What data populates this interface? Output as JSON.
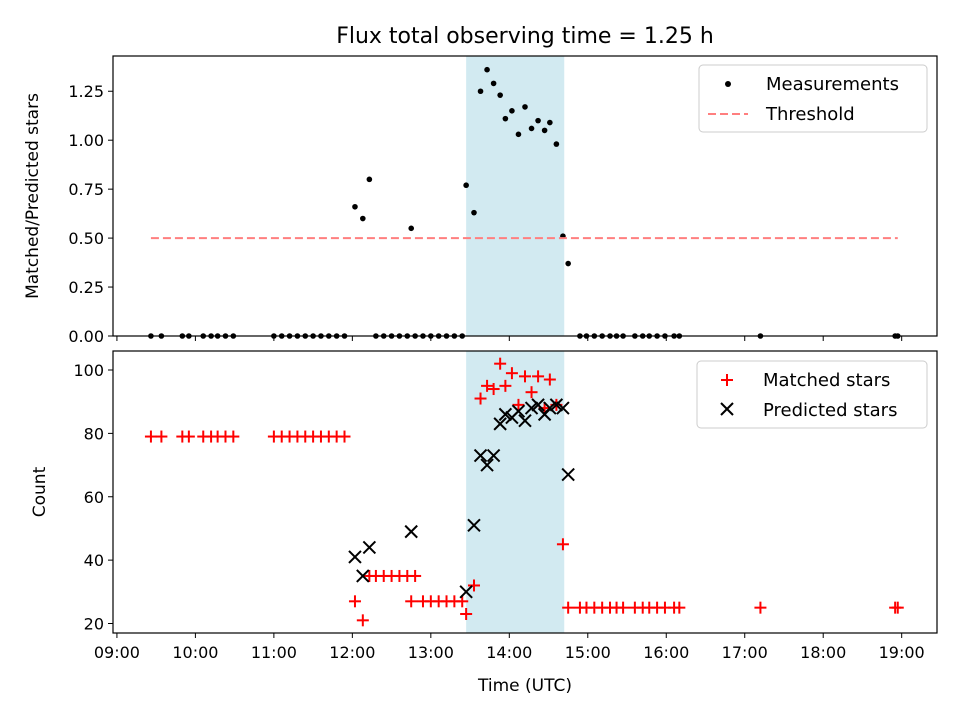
{
  "chart_data": [
    {
      "type": "scatter",
      "title": "Flux total observing time = 1.25 h",
      "xlabel": "",
      "ylabel": "Matched/Predicted stars",
      "ylim": [
        0,
        1.43
      ],
      "xlim": [
        "09:00",
        "19:00"
      ],
      "y_ticks": [
        "0.00",
        "0.25",
        "0.50",
        "0.75",
        "1.00",
        "1.25"
      ],
      "highlight_span": {
        "start": "13:27",
        "end": "14:42",
        "color": "#add8e6"
      },
      "legend_position": "top-right",
      "series": [
        {
          "name": "Measurements",
          "color": "#000000",
          "marker": "dot",
          "points": [
            [
              "09:26",
              0
            ],
            [
              "09:34",
              0
            ],
            [
              "09:50",
              0
            ],
            [
              "09:55",
              0
            ],
            [
              "10:06",
              0
            ],
            [
              "10:12",
              0
            ],
            [
              "10:17",
              0
            ],
            [
              "10:23",
              0
            ],
            [
              "10:29",
              0
            ],
            [
              "11:00",
              0
            ],
            [
              "11:06",
              0
            ],
            [
              "11:12",
              0
            ],
            [
              "11:18",
              0
            ],
            [
              "11:24",
              0
            ],
            [
              "11:30",
              0
            ],
            [
              "11:36",
              0
            ],
            [
              "11:42",
              0
            ],
            [
              "11:48",
              0
            ],
            [
              "11:54",
              0
            ],
            [
              "12:02",
              0.66
            ],
            [
              "12:08",
              0.6
            ],
            [
              "12:13",
              0.8
            ],
            [
              "12:18",
              0
            ],
            [
              "12:24",
              0
            ],
            [
              "12:30",
              0
            ],
            [
              "12:36",
              0
            ],
            [
              "12:42",
              0
            ],
            [
              "12:48",
              0
            ],
            [
              "12:45",
              0.55
            ],
            [
              "12:54",
              0
            ],
            [
              "13:00",
              0
            ],
            [
              "13:06",
              0
            ],
            [
              "13:12",
              0
            ],
            [
              "13:18",
              0
            ],
            [
              "13:24",
              0
            ],
            [
              "13:27",
              0.77
            ],
            [
              "13:33",
              0.63
            ],
            [
              "13:38",
              1.25
            ],
            [
              "13:43",
              1.36
            ],
            [
              "13:48",
              1.29
            ],
            [
              "13:53",
              1.23
            ],
            [
              "13:57",
              1.11
            ],
            [
              "14:02",
              1.15
            ],
            [
              "14:07",
              1.03
            ],
            [
              "14:12",
              1.17
            ],
            [
              "14:17",
              1.06
            ],
            [
              "14:22",
              1.1
            ],
            [
              "14:27",
              1.05
            ],
            [
              "14:31",
              1.09
            ],
            [
              "14:36",
              0.98
            ],
            [
              "14:41",
              0.51
            ],
            [
              "14:45",
              0.37
            ],
            [
              "14:54",
              0
            ],
            [
              "14:59",
              0
            ],
            [
              "15:05",
              0
            ],
            [
              "15:11",
              0
            ],
            [
              "15:17",
              0
            ],
            [
              "15:22",
              0
            ],
            [
              "15:27",
              0
            ],
            [
              "15:36",
              0
            ],
            [
              "15:42",
              0
            ],
            [
              "15:47",
              0
            ],
            [
              "15:53",
              0
            ],
            [
              "15:59",
              0
            ],
            [
              "16:06",
              0
            ],
            [
              "16:10",
              0
            ],
            [
              "17:12",
              0
            ],
            [
              "18:55",
              0
            ],
            [
              "18:57",
              0
            ]
          ]
        },
        {
          "name": "Threshold",
          "color": "#ff7f7f",
          "marker": "dashed-line",
          "points": [
            [
              "09:26",
              0.5
            ],
            [
              "18:57",
              0.5
            ]
          ]
        }
      ]
    },
    {
      "type": "scatter",
      "title": "",
      "xlabel": "Time (UTC)",
      "ylabel": "Count",
      "ylim": [
        17,
        106
      ],
      "xlim": [
        "09:00",
        "19:00"
      ],
      "y_ticks": [
        "20",
        "40",
        "60",
        "80",
        "100"
      ],
      "x_ticks": [
        "09:00",
        "10:00",
        "11:00",
        "12:00",
        "13:00",
        "14:00",
        "15:00",
        "16:00",
        "17:00",
        "18:00",
        "19:00"
      ],
      "highlight_span": {
        "start": "13:27",
        "end": "14:42",
        "color": "#add8e6"
      },
      "legend_position": "top-right",
      "series": [
        {
          "name": "Matched stars",
          "color": "#ff0000",
          "marker": "plus",
          "points": [
            [
              "09:26",
              79
            ],
            [
              "09:34",
              79
            ],
            [
              "09:50",
              79
            ],
            [
              "09:55",
              79
            ],
            [
              "10:06",
              79
            ],
            [
              "10:12",
              79
            ],
            [
              "10:17",
              79
            ],
            [
              "10:23",
              79
            ],
            [
              "10:29",
              79
            ],
            [
              "11:00",
              79
            ],
            [
              "11:06",
              79
            ],
            [
              "11:12",
              79
            ],
            [
              "11:18",
              79
            ],
            [
              "11:24",
              79
            ],
            [
              "11:30",
              79
            ],
            [
              "11:36",
              79
            ],
            [
              "11:42",
              79
            ],
            [
              "11:48",
              79
            ],
            [
              "11:54",
              79
            ],
            [
              "12:02",
              27
            ],
            [
              "12:08",
              21
            ],
            [
              "12:13",
              35
            ],
            [
              "12:18",
              35
            ],
            [
              "12:24",
              35
            ],
            [
              "12:30",
              35
            ],
            [
              "12:36",
              35
            ],
            [
              "12:42",
              35
            ],
            [
              "12:48",
              35
            ],
            [
              "12:45",
              27
            ],
            [
              "12:54",
              27
            ],
            [
              "13:00",
              27
            ],
            [
              "13:06",
              27
            ],
            [
              "13:12",
              27
            ],
            [
              "13:18",
              27
            ],
            [
              "13:24",
              27
            ],
            [
              "13:27",
              23
            ],
            [
              "13:33",
              32
            ],
            [
              "13:38",
              91
            ],
            [
              "13:43",
              95
            ],
            [
              "13:48",
              94
            ],
            [
              "13:53",
              102
            ],
            [
              "13:57",
              95
            ],
            [
              "14:02",
              99
            ],
            [
              "14:07",
              89
            ],
            [
              "14:12",
              98
            ],
            [
              "14:17",
              93
            ],
            [
              "14:22",
              98
            ],
            [
              "14:27",
              88
            ],
            [
              "14:31",
              97
            ],
            [
              "14:36",
              89
            ],
            [
              "14:41",
              45
            ],
            [
              "14:45",
              25
            ],
            [
              "14:54",
              25
            ],
            [
              "14:59",
              25
            ],
            [
              "15:05",
              25
            ],
            [
              "15:11",
              25
            ],
            [
              "15:17",
              25
            ],
            [
              "15:22",
              25
            ],
            [
              "15:27",
              25
            ],
            [
              "15:36",
              25
            ],
            [
              "15:42",
              25
            ],
            [
              "15:47",
              25
            ],
            [
              "15:53",
              25
            ],
            [
              "15:59",
              25
            ],
            [
              "16:06",
              25
            ],
            [
              "16:10",
              25
            ],
            [
              "17:12",
              25
            ],
            [
              "18:55",
              25
            ],
            [
              "18:57",
              25
            ]
          ]
        },
        {
          "name": "Predicted stars",
          "color": "#000000",
          "marker": "x",
          "points": [
            [
              "12:02",
              41
            ],
            [
              "12:08",
              35
            ],
            [
              "12:13",
              44
            ],
            [
              "12:45",
              49
            ],
            [
              "13:27",
              30
            ],
            [
              "13:33",
              51
            ],
            [
              "13:38",
              73
            ],
            [
              "13:43",
              70
            ],
            [
              "13:48",
              73
            ],
            [
              "13:53",
              83
            ],
            [
              "13:57",
              86
            ],
            [
              "14:02",
              85
            ],
            [
              "14:07",
              87
            ],
            [
              "14:12",
              84
            ],
            [
              "14:17",
              88
            ],
            [
              "14:22",
              89
            ],
            [
              "14:27",
              86
            ],
            [
              "14:31",
              88
            ],
            [
              "14:36",
              89
            ],
            [
              "14:41",
              88
            ],
            [
              "14:45",
              67
            ]
          ]
        }
      ]
    }
  ]
}
